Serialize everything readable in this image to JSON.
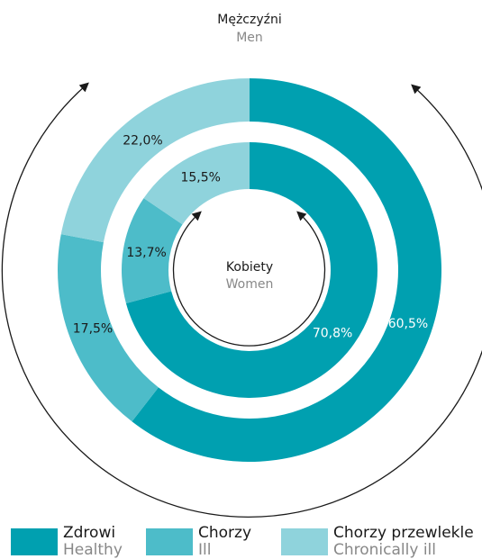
{
  "chart_data": {
    "type": "donut",
    "categories": [
      "Zdrowi",
      "Chorzy",
      "Chorzy przewlekle"
    ],
    "categories_en": [
      "Healthy",
      "Ill",
      "Chronically ill"
    ],
    "colors": [
      "#00a0b0",
      "#4dbcc9",
      "#8fd3dc"
    ],
    "series": [
      {
        "name": "Mężczyźni",
        "name_en": "Men",
        "values": [
          60.5,
          17.5,
          22.0
        ],
        "value_labels": [
          "60,5%",
          "17,5%",
          "22,0%"
        ]
      },
      {
        "name": "Kobiety",
        "name_en": "Women",
        "values": [
          70.8,
          13.7,
          15.5
        ],
        "value_labels": [
          "70,8%",
          "13,7%",
          "15,5%"
        ]
      }
    ]
  }
}
